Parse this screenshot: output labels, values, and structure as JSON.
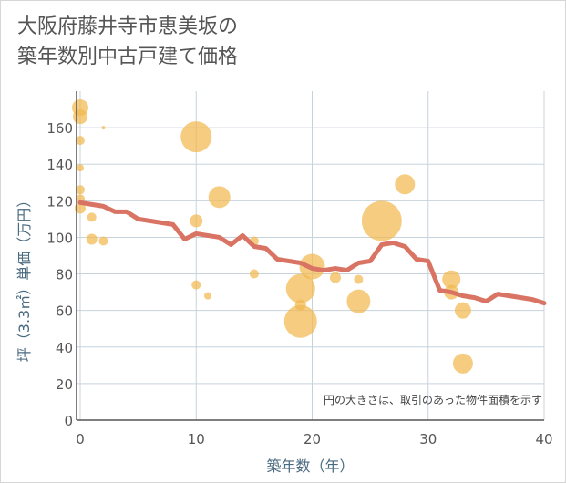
{
  "chart_data": {
    "type": "scatter",
    "title_line1": "大阪府藤井寺市恵美坂の",
    "title_line2": "築年数別中古戸建て価格",
    "xlabel": "築年数（年）",
    "ylabel": "坪（3.3㎡）単価（万円）",
    "xlim": [
      0,
      40
    ],
    "ylim": [
      0,
      180
    ],
    "x_ticks": [
      0,
      10,
      20,
      30,
      40
    ],
    "y_ticks": [
      0,
      20,
      40,
      60,
      80,
      100,
      120,
      140,
      160
    ],
    "note": "円の大きさは、取引のあった物件面積を示す",
    "colors": {
      "bubble": "#f1b94f",
      "line": "#d97363",
      "grid": "#c7d3dc",
      "axis": "#555555"
    },
    "bubbles": [
      {
        "x": 0,
        "y": 171,
        "s": 9
      },
      {
        "x": 0,
        "y": 166,
        "s": 8
      },
      {
        "x": 0,
        "y": 153,
        "s": 5
      },
      {
        "x": 0,
        "y": 138,
        "s": 4
      },
      {
        "x": 0,
        "y": 126,
        "s": 5
      },
      {
        "x": 0,
        "y": 121,
        "s": 5
      },
      {
        "x": 0,
        "y": 116,
        "s": 6
      },
      {
        "x": 1,
        "y": 111,
        "s": 5
      },
      {
        "x": 1,
        "y": 99,
        "s": 6
      },
      {
        "x": 2,
        "y": 98,
        "s": 5
      },
      {
        "x": 2,
        "y": 160,
        "s": 2
      },
      {
        "x": 10,
        "y": 155,
        "s": 17
      },
      {
        "x": 10,
        "y": 109,
        "s": 7
      },
      {
        "x": 10,
        "y": 74,
        "s": 5
      },
      {
        "x": 11,
        "y": 68,
        "s": 4
      },
      {
        "x": 12,
        "y": 122,
        "s": 12
      },
      {
        "x": 15,
        "y": 98,
        "s": 5
      },
      {
        "x": 15,
        "y": 80,
        "s": 5
      },
      {
        "x": 19,
        "y": 72,
        "s": 16
      },
      {
        "x": 19,
        "y": 63,
        "s": 6
      },
      {
        "x": 19,
        "y": 54,
        "s": 18
      },
      {
        "x": 20,
        "y": 84,
        "s": 14
      },
      {
        "x": 22,
        "y": 78,
        "s": 6
      },
      {
        "x": 24,
        "y": 77,
        "s": 5
      },
      {
        "x": 24,
        "y": 65,
        "s": 13
      },
      {
        "x": 26,
        "y": 109,
        "s": 22
      },
      {
        "x": 28,
        "y": 129,
        "s": 11
      },
      {
        "x": 32,
        "y": 77,
        "s": 10
      },
      {
        "x": 32,
        "y": 70,
        "s": 8
      },
      {
        "x": 33,
        "y": 60,
        "s": 9
      },
      {
        "x": 33,
        "y": 31,
        "s": 11
      }
    ],
    "trend": {
      "x": [
        0,
        1,
        2,
        3,
        4,
        5,
        6,
        7,
        8,
        9,
        10,
        11,
        12,
        13,
        14,
        15,
        16,
        17,
        18,
        19,
        20,
        21,
        22,
        23,
        24,
        25,
        26,
        27,
        28,
        29,
        30,
        31,
        32,
        33,
        34,
        35,
        36,
        37,
        38,
        39,
        40
      ],
      "y": [
        119,
        118,
        117,
        114,
        114,
        110,
        109,
        108,
        107,
        99,
        102,
        101,
        100,
        96,
        101,
        95,
        94,
        88,
        87,
        86,
        83,
        82,
        83,
        82,
        86,
        87,
        96,
        97,
        95,
        88,
        87,
        71,
        70,
        68,
        67,
        65,
        69,
        68,
        67,
        66,
        64
      ]
    }
  }
}
